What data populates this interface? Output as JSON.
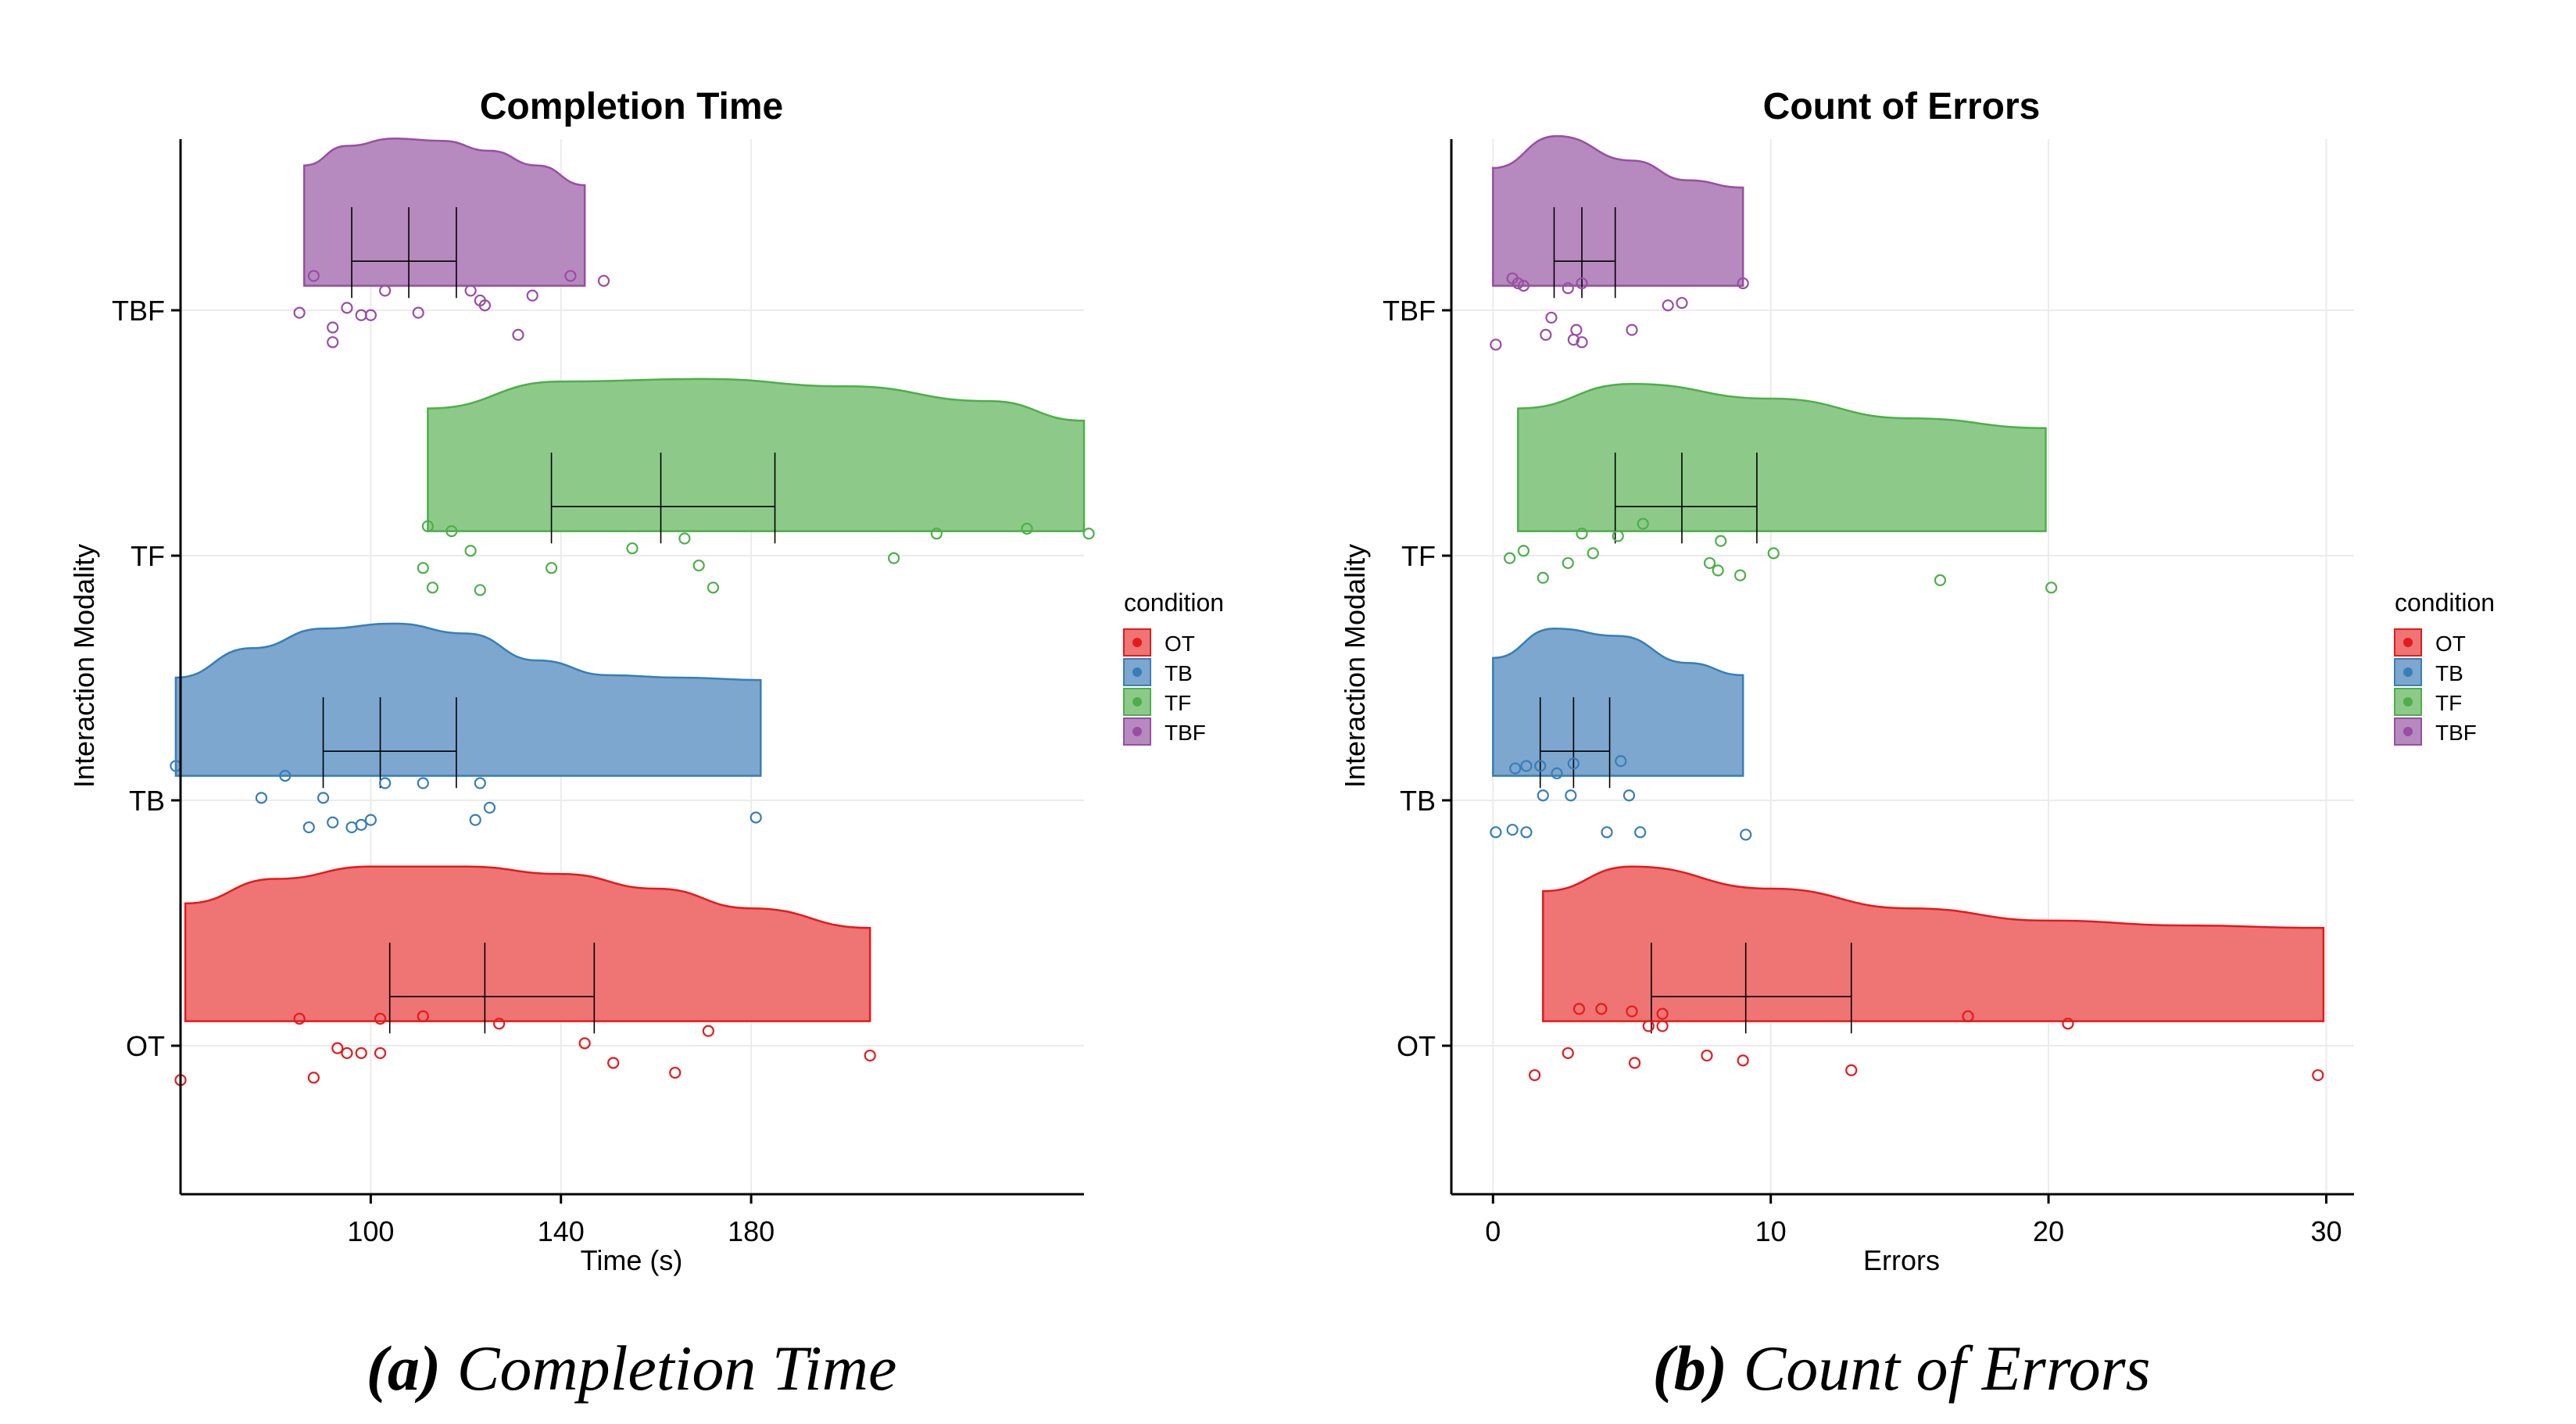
{
  "chart_data": [
    {
      "type": "raincloud",
      "title": "Completion Time",
      "xlabel": "Time (s)",
      "ylabel": "Interaction Modality",
      "xlim": [
        60,
        250
      ],
      "xticks": [
        100,
        140,
        180
      ],
      "categories": [
        "OT",
        "TB",
        "TF",
        "TBF"
      ],
      "grid": true,
      "legend": {
        "title": "condition",
        "position": "right",
        "entries": [
          "OT",
          "TB",
          "TF",
          "TBF"
        ]
      },
      "caption": {
        "label": "(a)",
        "text": "Completion Time"
      },
      "series": [
        {
          "name": "OT",
          "color": "#E41A1C",
          "fill": "#EF7474",
          "points": [
            [
              60,
              -0.14
            ],
            [
              85,
              0.11
            ],
            [
              88,
              -0.13
            ],
            [
              93,
              -0.01
            ],
            [
              95,
              -0.03
            ],
            [
              98,
              -0.03
            ],
            [
              102,
              0.11
            ],
            [
              102,
              -0.03
            ],
            [
              111,
              0.12
            ],
            [
              127,
              0.09
            ],
            [
              145,
              0.01
            ],
            [
              151,
              -0.07
            ],
            [
              164,
              -0.11
            ],
            [
              171,
              0.06
            ],
            [
              205,
              -0.04
            ]
          ],
          "box": {
            "q1": 104,
            "median": 124,
            "q3": 147
          },
          "density": [
            [
              61,
              0.58
            ],
            [
              80,
              0.68
            ],
            [
              100,
              0.73
            ],
            [
              120,
              0.73
            ],
            [
              140,
              0.7
            ],
            [
              160,
              0.64
            ],
            [
              180,
              0.56
            ],
            [
              205,
              0.48
            ]
          ]
        },
        {
          "name": "TB",
          "color": "#377EB8",
          "fill": "#7DA7CE",
          "points": [
            [
              59,
              0.14
            ],
            [
              77,
              0.01
            ],
            [
              82,
              0.1
            ],
            [
              87,
              -0.11
            ],
            [
              90,
              0.01
            ],
            [
              92,
              -0.09
            ],
            [
              96,
              -0.11
            ],
            [
              98,
              -0.1
            ],
            [
              100,
              -0.08
            ],
            [
              103,
              0.07
            ],
            [
              111,
              0.07
            ],
            [
              123,
              0.07
            ],
            [
              122,
              -0.08
            ],
            [
              125,
              -0.03
            ],
            [
              181,
              -0.07
            ]
          ],
          "box": {
            "q1": 90,
            "median": 102,
            "q3": 118
          },
          "density": [
            [
              59,
              0.5
            ],
            [
              75,
              0.62
            ],
            [
              90,
              0.7
            ],
            [
              105,
              0.72
            ],
            [
              120,
              0.68
            ],
            [
              135,
              0.57
            ],
            [
              150,
              0.51
            ],
            [
              165,
              0.5
            ],
            [
              182,
              0.49
            ]
          ]
        },
        {
          "name": "TF",
          "color": "#4DAF4A",
          "fill": "#8DCA89",
          "points": [
            [
              111,
              -0.05
            ],
            [
              112,
              0.12
            ],
            [
              113,
              -0.13
            ],
            [
              117,
              0.1
            ],
            [
              121,
              0.02
            ],
            [
              123,
              -0.14
            ],
            [
              138,
              -0.05
            ],
            [
              155,
              0.03
            ],
            [
              166,
              0.07
            ],
            [
              169,
              -0.04
            ],
            [
              172,
              -0.13
            ],
            [
              210,
              -0.01
            ],
            [
              219,
              0.09
            ],
            [
              238,
              0.11
            ],
            [
              251,
              0.09
            ]
          ],
          "box": {
            "q1": 138,
            "median": 161,
            "q3": 185
          },
          "density": [
            [
              112,
              0.6
            ],
            [
              140,
              0.71
            ],
            [
              170,
              0.72
            ],
            [
              200,
              0.69
            ],
            [
              230,
              0.63
            ],
            [
              250,
              0.55
            ]
          ]
        },
        {
          "name": "TBF",
          "color": "#984EA3",
          "fill": "#B68ABE",
          "points": [
            [
              85,
              -0.01
            ],
            [
              88,
              0.14
            ],
            [
              92,
              -0.07
            ],
            [
              92,
              -0.13
            ],
            [
              95,
              0.01
            ],
            [
              98,
              -0.02
            ],
            [
              100,
              -0.02
            ],
            [
              103,
              0.08
            ],
            [
              110,
              -0.01
            ],
            [
              121,
              0.08
            ],
            [
              123,
              0.04
            ],
            [
              124,
              0.02
            ],
            [
              131,
              -0.1
            ],
            [
              134,
              0.06
            ],
            [
              142,
              0.14
            ],
            [
              149,
              0.12
            ]
          ],
          "box": {
            "q1": 96,
            "median": 108,
            "q3": 118
          },
          "density": [
            [
              86,
              0.59
            ],
            [
              95,
              0.67
            ],
            [
              105,
              0.7
            ],
            [
              115,
              0.69
            ],
            [
              125,
              0.65
            ],
            [
              135,
              0.59
            ],
            [
              145,
              0.51
            ]
          ]
        }
      ]
    },
    {
      "type": "raincloud",
      "title": "Count of Errors",
      "xlabel": "Errors",
      "ylabel": "Interaction Modality",
      "xlim": [
        -1.5,
        31
      ],
      "xticks": [
        0,
        10,
        20,
        30
      ],
      "categories": [
        "OT",
        "TB",
        "TF",
        "TBF"
      ],
      "grid": true,
      "legend": {
        "title": "condition",
        "position": "right",
        "entries": [
          "OT",
          "TB",
          "TF",
          "TBF"
        ]
      },
      "caption": {
        "label": "(b)",
        "text": "Count of Errors"
      },
      "series": [
        {
          "name": "OT",
          "color": "#E41A1C",
          "fill": "#EF7474",
          "points": [
            [
              1.5,
              -0.12
            ],
            [
              2.7,
              -0.03
            ],
            [
              3.1,
              0.15
            ],
            [
              3.9,
              0.15
            ],
            [
              5.0,
              0.14
            ],
            [
              5.1,
              -0.07
            ],
            [
              5.6,
              0.08
            ],
            [
              6.1,
              0.13
            ],
            [
              6.1,
              0.08
            ],
            [
              7.7,
              -0.04
            ],
            [
              9.0,
              -0.06
            ],
            [
              12.9,
              -0.1
            ],
            [
              17.1,
              0.12
            ],
            [
              20.7,
              0.09
            ],
            [
              29.7,
              -0.12
            ]
          ],
          "box": {
            "q1": 5.7,
            "median": 9.1,
            "q3": 12.9
          },
          "density": [
            [
              1.8,
              0.63
            ],
            [
              5,
              0.73
            ],
            [
              10,
              0.64
            ],
            [
              15,
              0.56
            ],
            [
              20,
              0.51
            ],
            [
              25,
              0.49
            ],
            [
              29.9,
              0.48
            ]
          ]
        },
        {
          "name": "TB",
          "color": "#377EB8",
          "fill": "#7DA7CE",
          "points": [
            [
              0.1,
              -0.13
            ],
            [
              0.7,
              -0.12
            ],
            [
              0.8,
              0.13
            ],
            [
              1.2,
              -0.13
            ],
            [
              1.2,
              0.14
            ],
            [
              1.7,
              0.14
            ],
            [
              1.8,
              0.02
            ],
            [
              2.3,
              0.11
            ],
            [
              2.8,
              0.02
            ],
            [
              2.9,
              0.15
            ],
            [
              4.1,
              -0.13
            ],
            [
              4.6,
              0.16
            ],
            [
              4.9,
              0.02
            ],
            [
              5.3,
              -0.13
            ],
            [
              9.1,
              -0.14
            ]
          ],
          "box": {
            "q1": 1.7,
            "median": 2.9,
            "q3": 4.2
          },
          "density": [
            [
              0,
              0.58
            ],
            [
              2.2,
              0.7
            ],
            [
              4.5,
              0.67
            ],
            [
              7,
              0.56
            ],
            [
              9,
              0.51
            ]
          ]
        },
        {
          "name": "TF",
          "color": "#4DAF4A",
          "fill": "#8DCA89",
          "points": [
            [
              0.6,
              -0.01
            ],
            [
              1.1,
              0.02
            ],
            [
              1.8,
              -0.09
            ],
            [
              2.7,
              -0.03
            ],
            [
              3.2,
              0.09
            ],
            [
              3.6,
              0.01
            ],
            [
              4.5,
              0.08
            ],
            [
              5.4,
              0.13
            ],
            [
              7.8,
              -0.03
            ],
            [
              8.2,
              0.06
            ],
            [
              8.1,
              -0.06
            ],
            [
              8.9,
              -0.08
            ],
            [
              10.1,
              0.01
            ],
            [
              16.1,
              -0.1
            ],
            [
              20.1,
              -0.13
            ]
          ],
          "box": {
            "q1": 4.4,
            "median": 6.8,
            "q3": 9.5
          },
          "density": [
            [
              0.9,
              0.6
            ],
            [
              5,
              0.7
            ],
            [
              10,
              0.64
            ],
            [
              15,
              0.56
            ],
            [
              19.9,
              0.52
            ]
          ]
        },
        {
          "name": "TBF",
          "color": "#984EA3",
          "fill": "#B68ABE",
          "points": [
            [
              0.1,
              -0.14
            ],
            [
              0.7,
              0.13
            ],
            [
              0.9,
              0.11
            ],
            [
              1.1,
              0.1
            ],
            [
              1.9,
              -0.1
            ],
            [
              2.1,
              -0.03
            ],
            [
              2.7,
              0.09
            ],
            [
              2.9,
              -0.12
            ],
            [
              3.0,
              -0.08
            ],
            [
              3.2,
              0.11
            ],
            [
              3.2,
              -0.13
            ],
            [
              5.0,
              -0.08
            ],
            [
              6.3,
              0.02
            ],
            [
              6.8,
              0.03
            ],
            [
              9.0,
              0.11
            ]
          ],
          "box": {
            "q1": 2.2,
            "median": 3.2,
            "q3": 4.4
          },
          "density": [
            [
              0,
              0.58
            ],
            [
              2.3,
              0.71
            ],
            [
              5,
              0.61
            ],
            [
              7,
              0.53
            ],
            [
              9,
              0.5
            ]
          ]
        }
      ]
    }
  ]
}
